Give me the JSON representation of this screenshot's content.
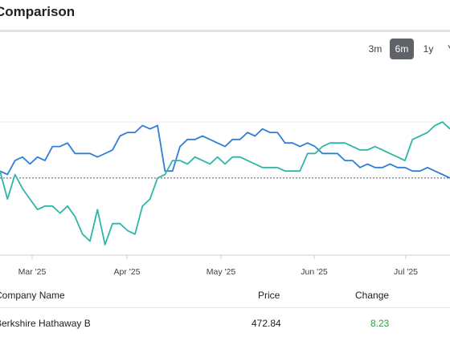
{
  "header": {
    "title": "Comparison"
  },
  "ranges": [
    {
      "label": "3m",
      "active": false
    },
    {
      "label": "6m",
      "active": true
    },
    {
      "label": "1y",
      "active": false
    },
    {
      "label": "YTD",
      "active": false
    }
  ],
  "chart_data": {
    "type": "line",
    "xticks": [
      "Mar '25",
      "Apr '25",
      "May '25",
      "Jun '25",
      "Jul '25"
    ],
    "baseline": 0,
    "ylim": [
      -22,
      16
    ],
    "series": [
      {
        "color": "#2f7ed8",
        "x": [
          0,
          3,
          6,
          9,
          12,
          15,
          18,
          21,
          24,
          27,
          30,
          33,
          36,
          39,
          42,
          45,
          48,
          51,
          54,
          57,
          60,
          63,
          66,
          69,
          72,
          75,
          78,
          81,
          84,
          87,
          90,
          93,
          96,
          99,
          102,
          105,
          108,
          111,
          114,
          117,
          120,
          123,
          126,
          129,
          132,
          135,
          138,
          141,
          144,
          147,
          150,
          153,
          156,
          159,
          162,
          165,
          168,
          171,
          174,
          177,
          180
        ],
        "y": [
          2,
          1,
          5,
          6,
          4,
          6,
          5,
          9,
          9,
          10,
          7,
          7,
          7,
          6,
          7,
          8,
          12,
          13,
          13,
          15,
          14,
          15,
          2,
          2,
          9,
          11,
          11,
          12,
          11,
          10,
          9,
          11,
          11,
          13,
          12,
          14,
          13,
          13,
          10,
          10,
          9,
          10,
          9,
          7,
          7,
          7,
          5,
          5,
          3,
          4,
          3,
          3,
          4,
          3,
          3,
          2,
          2,
          3,
          2,
          1,
          0
        ]
      },
      {
        "color": "#30b5a8",
        "x": [
          0,
          3,
          6,
          9,
          12,
          15,
          18,
          21,
          24,
          27,
          30,
          33,
          36,
          39,
          42,
          45,
          48,
          51,
          54,
          57,
          60,
          63,
          66,
          69,
          72,
          75,
          78,
          81,
          84,
          87,
          90,
          93,
          96,
          99,
          102,
          105,
          108,
          111,
          114,
          117,
          120,
          123,
          126,
          129,
          132,
          135,
          138,
          141,
          144,
          147,
          150,
          153,
          156,
          159,
          162,
          165,
          168,
          171,
          174,
          177,
          180
        ],
        "y": [
          2,
          -6,
          1,
          -3,
          -6,
          -9,
          -8,
          -8,
          -10,
          -8,
          -11,
          -16,
          -18,
          -9,
          -19,
          -13,
          -13,
          -15,
          -16,
          -8,
          -6,
          0,
          1,
          5,
          5,
          4,
          6,
          5,
          4,
          6,
          4,
          6,
          6,
          5,
          4,
          3,
          3,
          3,
          2,
          2,
          2,
          7,
          7,
          9,
          10,
          10,
          10,
          9,
          8,
          8,
          9,
          8,
          7,
          6,
          5,
          11,
          12,
          13,
          15,
          16,
          14
        ]
      }
    ]
  },
  "table": {
    "headers": {
      "name": "Company Name",
      "price": "Price",
      "change": "Change"
    },
    "rows": [
      {
        "name": "Berkshire Hathaway B",
        "price": "472.84",
        "change": "8.23"
      }
    ]
  }
}
